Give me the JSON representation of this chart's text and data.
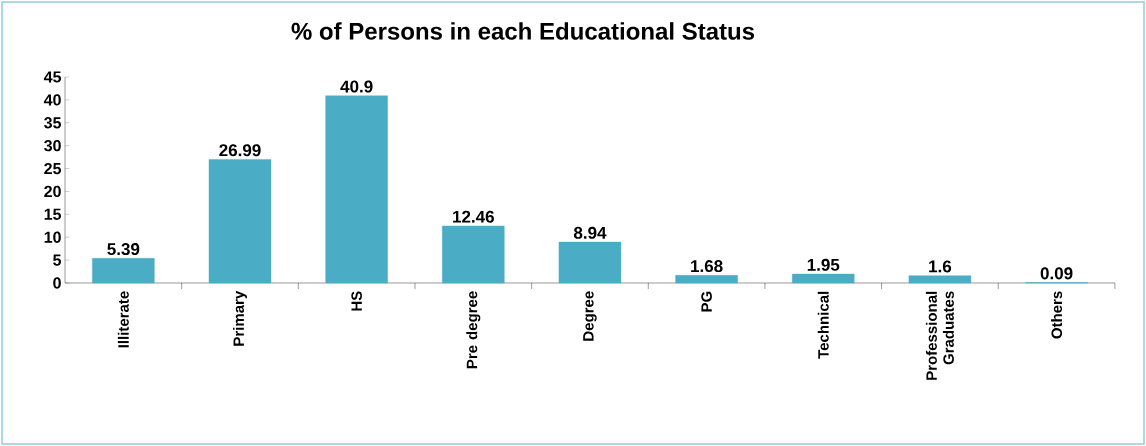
{
  "chart_data": {
    "type": "bar",
    "title": "% of Persons in each Educational Status",
    "categories": [
      "Illiterate",
      "Primary",
      "HS",
      "Pre degree",
      "Degree",
      "PG",
      "Technical",
      "Professional Graduates",
      "Others"
    ],
    "values": [
      5.39,
      26.99,
      40.9,
      12.46,
      8.94,
      1.68,
      1.95,
      1.6,
      0.09
    ],
    "color": "#4bacc6",
    "ylim": [
      0,
      45
    ],
    "yticks": [
      0,
      5,
      10,
      15,
      20,
      25,
      30,
      35,
      40,
      45
    ],
    "data_labels": true,
    "grid": false
  }
}
